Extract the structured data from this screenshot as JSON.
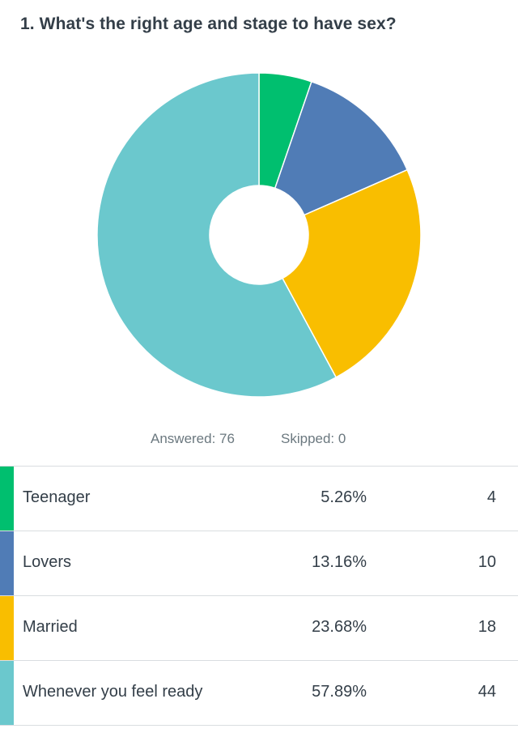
{
  "question": {
    "title": "1. What's the right age and stage to have sex?"
  },
  "stats": {
    "answered": "Answered: 76",
    "skipped": "Skipped: 0"
  },
  "chart_data": {
    "type": "pie",
    "style": "donut",
    "start": "12 o'clock, clockwise",
    "slice_border": "#ffffff",
    "categories": [
      "Teenager",
      "Lovers",
      "Married",
      "Whenever you feel ready"
    ],
    "values": [
      4,
      10,
      18,
      44
    ],
    "percentages": [
      5.26,
      13.16,
      23.68,
      57.89
    ],
    "colors": [
      "#00bf6f",
      "#507cb6",
      "#f9be00",
      "#6bc8cd"
    ],
    "total": 76
  },
  "table": {
    "rows": [
      {
        "label": "Teenager",
        "pct": "5.26%",
        "count": "4",
        "color": "#00bf6f"
      },
      {
        "label": "Lovers",
        "pct": "13.16%",
        "count": "10",
        "color": "#507cb6"
      },
      {
        "label": "Married",
        "pct": "23.68%",
        "count": "18",
        "color": "#f9be00"
      },
      {
        "label": "Whenever you feel ready",
        "pct": "57.89%",
        "count": "44",
        "color": "#6bc8cd"
      }
    ]
  }
}
